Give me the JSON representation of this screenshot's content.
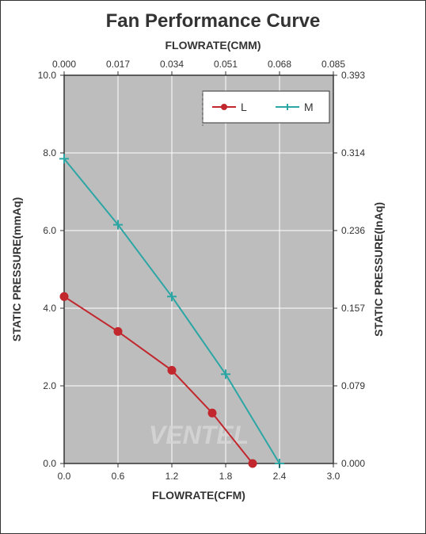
{
  "chart": {
    "type": "line",
    "title": "Fan Performance Curve",
    "title_fontsize": 24,
    "plot_background": "#bdbdbd",
    "grid_color": "#ffffff",
    "border_color": "#333333",
    "axes": {
      "x_bottom": {
        "label": "FLOWRATE(CFM)",
        "min": 0.0,
        "max": 3.0,
        "ticks": [
          "0.0",
          "0.6",
          "1.2",
          "1.8",
          "2.4",
          "3.0"
        ],
        "label_fontsize": 14
      },
      "x_top": {
        "label": "FLOWRATE(CMM)",
        "min": 0.0,
        "max": 0.085,
        "ticks": [
          "0.000",
          "0.017",
          "0.034",
          "0.051",
          "0.068",
          "0.085"
        ],
        "label_fontsize": 14
      },
      "y_left": {
        "label": "STATIC PRESSURE(mmAq)",
        "min": 0.0,
        "max": 10.0,
        "ticks": [
          "0.0",
          "2.0",
          "4.0",
          "6.0",
          "8.0",
          "10.0"
        ],
        "label_fontsize": 14
      },
      "y_right": {
        "label": "STATIC PRESSURE(InAq)",
        "min": 0.0,
        "max": 0.393,
        "ticks": [
          "0.000",
          "0.079",
          "0.157",
          "0.236",
          "0.314",
          "0.393"
        ],
        "label_fontsize": 14
      }
    },
    "series": [
      {
        "name": "L",
        "color": "#c1272d",
        "marker": "circle",
        "marker_size": 5,
        "line_width": 2,
        "data": [
          {
            "x": 0.0,
            "y": 4.3
          },
          {
            "x": 0.6,
            "y": 3.4
          },
          {
            "x": 1.2,
            "y": 2.4
          },
          {
            "x": 1.65,
            "y": 1.3
          },
          {
            "x": 2.1,
            "y": 0.0
          }
        ]
      },
      {
        "name": "M",
        "color": "#2ca6a4",
        "marker": "plus",
        "marker_size": 6,
        "line_width": 2,
        "data": [
          {
            "x": 0.0,
            "y": 7.85
          },
          {
            "x": 0.6,
            "y": 6.15
          },
          {
            "x": 1.2,
            "y": 4.3
          },
          {
            "x": 1.8,
            "y": 2.3
          },
          {
            "x": 2.4,
            "y": 0.0
          }
        ]
      }
    ],
    "legend": {
      "position": "top-right",
      "border_color": "#333333",
      "background": "#ffffff"
    },
    "watermark": {
      "text": "VENTEL",
      "color": "#d0d0d0"
    }
  }
}
